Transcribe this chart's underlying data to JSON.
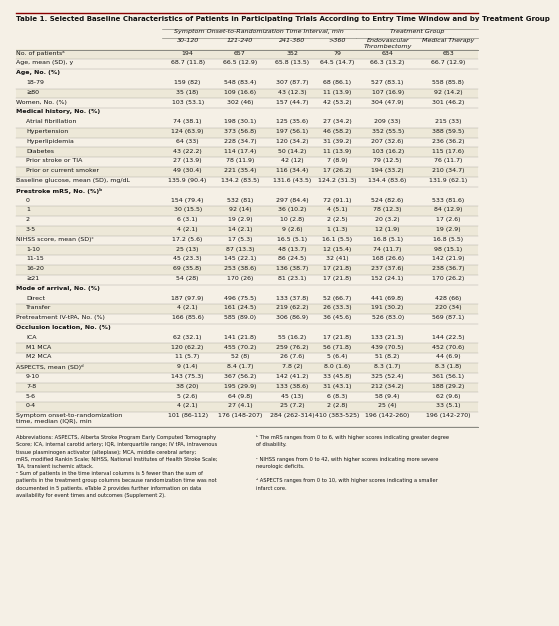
{
  "title": "Table 1. Selected Baseline Characteristics of Patients in Participating Trials According to Entry Time Window and by Treatment Group",
  "col_labels": [
    "30-120",
    "121-240",
    "241-360",
    ">360",
    "Endovascular\nThrombectomy",
    "Medical Therapy"
  ],
  "rows": [
    {
      "label": "No. of patientsᵃ",
      "indent": 0,
      "bold": false,
      "section": false,
      "values": [
        "194",
        "657",
        "352",
        "79",
        "634",
        "653"
      ]
    },
    {
      "label": "Age, mean (SD), y",
      "indent": 0,
      "bold": false,
      "section": false,
      "values": [
        "68.7 (11.8)",
        "66.5 (12.9)",
        "65.8 (13.5)",
        "64.5 (14.7)",
        "66.3 (13.2)",
        "66.7 (12.9)"
      ]
    },
    {
      "label": "Age, No. (%)",
      "indent": 0,
      "bold": true,
      "section": true,
      "values": [
        "",
        "",
        "",
        "",
        "",
        ""
      ]
    },
    {
      "label": "18-79",
      "indent": 1,
      "bold": false,
      "section": false,
      "values": [
        "159 (82)",
        "548 (83.4)",
        "307 (87.7)",
        "68 (86.1)",
        "527 (83.1)",
        "558 (85.8)"
      ]
    },
    {
      "label": "≥80",
      "indent": 1,
      "bold": false,
      "section": false,
      "values": [
        "35 (18)",
        "109 (16.6)",
        "43 (12.3)",
        "11 (13.9)",
        "107 (16.9)",
        "92 (14.2)"
      ]
    },
    {
      "label": "Women, No. (%)",
      "indent": 0,
      "bold": false,
      "section": false,
      "values": [
        "103 (53.1)",
        "302 (46)",
        "157 (44.7)",
        "42 (53.2)",
        "304 (47.9)",
        "301 (46.2)"
      ]
    },
    {
      "label": "Medical history, No. (%)",
      "indent": 0,
      "bold": true,
      "section": true,
      "values": [
        "",
        "",
        "",
        "",
        "",
        ""
      ]
    },
    {
      "label": "Atrial fibrillation",
      "indent": 1,
      "bold": false,
      "section": false,
      "values": [
        "74 (38.1)",
        "198 (30.1)",
        "125 (35.6)",
        "27 (34.2)",
        "209 (33)",
        "215 (33)"
      ]
    },
    {
      "label": "Hypertension",
      "indent": 1,
      "bold": false,
      "section": false,
      "values": [
        "124 (63.9)",
        "373 (56.8)",
        "197 (56.1)",
        "46 (58.2)",
        "352 (55.5)",
        "388 (59.5)"
      ]
    },
    {
      "label": "Hyperlipidemia",
      "indent": 1,
      "bold": false,
      "section": false,
      "values": [
        "64 (33)",
        "228 (34.7)",
        "120 (34.2)",
        "31 (39.2)",
        "207 (32.6)",
        "236 (36.2)"
      ]
    },
    {
      "label": "Diabetes",
      "indent": 1,
      "bold": false,
      "section": false,
      "values": [
        "43 (22.2)",
        "114 (17.4)",
        "50 (14.2)",
        "11 (13.9)",
        "103 (16.2)",
        "115 (17.6)"
      ]
    },
    {
      "label": "Prior stroke or TIA",
      "indent": 1,
      "bold": false,
      "section": false,
      "values": [
        "27 (13.9)",
        "78 (11.9)",
        "42 (12)",
        "7 (8.9)",
        "79 (12.5)",
        "76 (11.7)"
      ]
    },
    {
      "label": "Prior or current smoker",
      "indent": 1,
      "bold": false,
      "section": false,
      "values": [
        "49 (30.4)",
        "221 (35.4)",
        "116 (34.4)",
        "17 (26.2)",
        "194 (33.2)",
        "210 (34.7)"
      ]
    },
    {
      "label": "Baseline glucose, mean (SD), mg/dL",
      "indent": 0,
      "bold": false,
      "section": false,
      "values": [
        "135.9 (90.4)",
        "134.2 (83.5)",
        "131.6 (43.5)",
        "124.2 (31.3)",
        "134.4 (83.6)",
        "131.9 (62.1)"
      ]
    },
    {
      "label": "Prestroke mRS, No. (%)ᵇ",
      "indent": 0,
      "bold": true,
      "section": true,
      "values": [
        "",
        "",
        "",
        "",
        "",
        ""
      ]
    },
    {
      "label": "0",
      "indent": 1,
      "bold": false,
      "section": false,
      "values": [
        "154 (79.4)",
        "532 (81)",
        "297 (84.4)",
        "72 (91.1)",
        "524 (82.6)",
        "533 (81.6)"
      ]
    },
    {
      "label": "1",
      "indent": 1,
      "bold": false,
      "section": false,
      "values": [
        "30 (15.5)",
        "92 (14)",
        "36 (10.2)",
        "4 (5.1)",
        "78 (12.3)",
        "84 (12.9)"
      ]
    },
    {
      "label": "2",
      "indent": 1,
      "bold": false,
      "section": false,
      "values": [
        "6 (3.1)",
        "19 (2.9)",
        "10 (2.8)",
        "2 (2.5)",
        "20 (3.2)",
        "17 (2.6)"
      ]
    },
    {
      "label": "3-5",
      "indent": 1,
      "bold": false,
      "section": false,
      "values": [
        "4 (2.1)",
        "14 (2.1)",
        "9 (2.6)",
        "1 (1.3)",
        "12 (1.9)",
        "19 (2.9)"
      ]
    },
    {
      "label": "NIHSS score, mean (SD)ᶜ",
      "indent": 0,
      "bold": false,
      "section": false,
      "values": [
        "17.2 (5.6)",
        "17 (5.3)",
        "16.5 (5.1)",
        "16.1 (5.5)",
        "16.8 (5.1)",
        "16.8 (5.5)"
      ]
    },
    {
      "label": "1-10",
      "indent": 1,
      "bold": false,
      "section": false,
      "values": [
        "25 (13)",
        "87 (13.3)",
        "48 (13.7)",
        "12 (15.4)",
        "74 (11.7)",
        "98 (15.1)"
      ]
    },
    {
      "label": "11-15",
      "indent": 1,
      "bold": false,
      "section": false,
      "values": [
        "45 (23.3)",
        "145 (22.1)",
        "86 (24.5)",
        "32 (41)",
        "168 (26.6)",
        "142 (21.9)"
      ]
    },
    {
      "label": "16-20",
      "indent": 1,
      "bold": false,
      "section": false,
      "values": [
        "69 (35.8)",
        "253 (38.6)",
        "136 (38.7)",
        "17 (21.8)",
        "237 (37.6)",
        "238 (36.7)"
      ]
    },
    {
      "label": "≥21",
      "indent": 1,
      "bold": false,
      "section": false,
      "values": [
        "54 (28)",
        "170 (26)",
        "81 (23.1)",
        "17 (21.8)",
        "152 (24.1)",
        "170 (26.2)"
      ]
    },
    {
      "label": "Mode of arrival, No. (%)",
      "indent": 0,
      "bold": true,
      "section": true,
      "values": [
        "",
        "",
        "",
        "",
        "",
        ""
      ]
    },
    {
      "label": "Direct",
      "indent": 1,
      "bold": false,
      "section": false,
      "values": [
        "187 (97.9)",
        "496 (75.5)",
        "133 (37.8)",
        "52 (66.7)",
        "441 (69.8)",
        "428 (66)"
      ]
    },
    {
      "label": "Transfer",
      "indent": 1,
      "bold": false,
      "section": false,
      "values": [
        "4 (2.1)",
        "161 (24.5)",
        "219 (62.2)",
        "26 (33.3)",
        "191 (30.2)",
        "220 (34)"
      ]
    },
    {
      "label": "Pretreatment IV-tPA, No. (%)",
      "indent": 0,
      "bold": false,
      "section": false,
      "values": [
        "166 (85.6)",
        "585 (89.0)",
        "306 (86.9)",
        "36 (45.6)",
        "526 (83.0)",
        "569 (87.1)"
      ]
    },
    {
      "label": "Occlusion location, No. (%)",
      "indent": 0,
      "bold": true,
      "section": true,
      "values": [
        "",
        "",
        "",
        "",
        "",
        ""
      ]
    },
    {
      "label": "ICA",
      "indent": 1,
      "bold": false,
      "section": false,
      "values": [
        "62 (32.1)",
        "141 (21.8)",
        "55 (16.2)",
        "17 (21.8)",
        "133 (21.3)",
        "144 (22.5)"
      ]
    },
    {
      "label": "M1 MCA",
      "indent": 1,
      "bold": false,
      "section": false,
      "values": [
        "120 (62.2)",
        "455 (70.2)",
        "259 (76.2)",
        "56 (71.8)",
        "439 (70.5)",
        "452 (70.6)"
      ]
    },
    {
      "label": "M2 MCA",
      "indent": 1,
      "bold": false,
      "section": false,
      "values": [
        "11 (5.7)",
        "52 (8)",
        "26 (7.6)",
        "5 (6.4)",
        "51 (8.2)",
        "44 (6.9)"
      ]
    },
    {
      "label": "ASPECTS, mean (SD)ᵈ",
      "indent": 0,
      "bold": false,
      "section": false,
      "values": [
        "9 (1.4)",
        "8.4 (1.7)",
        "7.8 (2)",
        "8.0 (1.6)",
        "8.3 (1.7)",
        "8.3 (1.8)"
      ]
    },
    {
      "label": "9-10",
      "indent": 1,
      "bold": false,
      "section": false,
      "values": [
        "143 (75.3)",
        "367 (56.2)",
        "142 (41.2)",
        "33 (45.8)",
        "325 (52.4)",
        "361 (56.1)"
      ]
    },
    {
      "label": "7-8",
      "indent": 1,
      "bold": false,
      "section": false,
      "values": [
        "38 (20)",
        "195 (29.9)",
        "133 (38.6)",
        "31 (43.1)",
        "212 (34.2)",
        "188 (29.2)"
      ]
    },
    {
      "label": "5-6",
      "indent": 1,
      "bold": false,
      "section": false,
      "values": [
        "5 (2.6)",
        "64 (9.8)",
        "45 (13)",
        "6 (8.3)",
        "58 (9.4)",
        "62 (9.6)"
      ]
    },
    {
      "label": "0-4",
      "indent": 1,
      "bold": false,
      "section": false,
      "values": [
        "4 (2.1)",
        "27 (4.1)",
        "25 (7.2)",
        "2 (2.8)",
        "25 (4)",
        "33 (5.1)"
      ]
    },
    {
      "label": "Symptom onset-to-randomization\ntime, median (IQR), min",
      "indent": 0,
      "bold": false,
      "section": false,
      "multiline": true,
      "values": [
        "101 (86-112)",
        "176 (148-207)",
        "284 (262-314)",
        "410 (383-525)",
        "196 (142-260)",
        "196 (142-270)"
      ]
    }
  ],
  "footnotes_left": [
    "Abbreviations: ASPECTS, Alberta Stroke Program Early Computed Tomography",
    "Score; ICA, internal carotid artery; IQR, interquartile range; IV tPA, intravenous",
    "tissue plasminogen activator (alteplase); MCA, middle cerebral artery;",
    "mRS, modified Rankin Scale; NIHSS, National Institutes of Health Stroke Scale;",
    "TIA, transient ischemic attack.",
    "ᵃ Sum of patients in the time interval columns is 5 fewer than the sum of",
    "patients in the treatment group columns because randomization time was not",
    "documented in 5 patients. eTable 2 provides further information on data",
    "availability for event times and outcomes (Supplement 2)."
  ],
  "footnotes_right": [
    "ᵇ The mRS ranges from 0 to 6, with higher scores indicating greater degree",
    "of disability.",
    "",
    "ᶜ NIHSS ranges from 0 to 42, with higher scores indicating more severe",
    "neurologic deficits.",
    "",
    "ᵈ ASPECTS ranges from 0 to 10, with higher scores indicating a smaller",
    "infarct core."
  ],
  "bg_color": "#f5f0e6",
  "line_color": "#888880",
  "text_color": "#111111",
  "title_color": "#111111",
  "red_line_color": "#8B0000",
  "col_proportions": [
    0.315,
    0.113,
    0.113,
    0.113,
    0.083,
    0.135,
    0.128
  ]
}
